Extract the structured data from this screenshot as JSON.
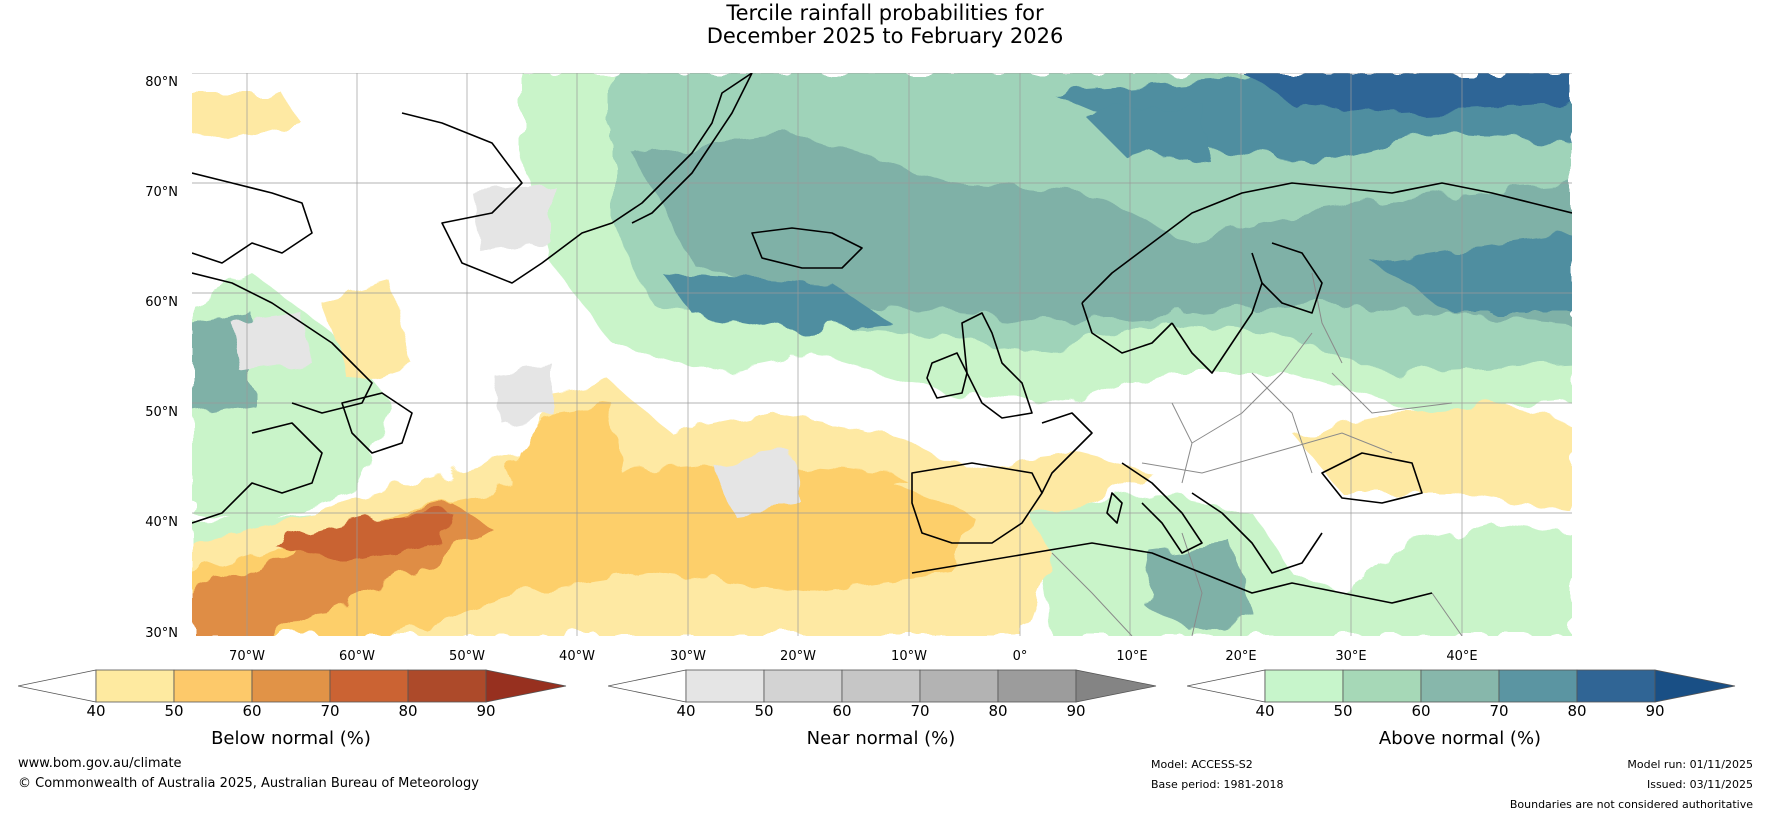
{
  "title": {
    "line1": "Tercile rainfall probabilities for",
    "line2": "December 2025 to February 2026"
  },
  "map": {
    "latitude_labels": [
      "80°N",
      "70°N",
      "60°N",
      "50°N",
      "40°N",
      "30°N"
    ],
    "longitude_labels": [
      "70°W",
      "60°W",
      "50°W",
      "40°W",
      "30°W",
      "20°W",
      "10°W",
      "0°",
      "10°E",
      "20°E",
      "30°E",
      "40°E"
    ],
    "colors": {
      "below_light": "#fee9a3",
      "below_mid": "#fdcf6b",
      "below_orange": "#df8d45",
      "below_dark": "#c96432",
      "near_light": "#e5e5e5",
      "near_mid": "#cfcfcf",
      "above_light": "#c9f4c9",
      "above_mid": "#9fd3b9",
      "above_teal": "#7fb1a7",
      "above_dark": "#4f8ea0",
      "above_navy": "#2d6596",
      "coastline": "#000000",
      "borders": "#8a8a8a",
      "gridlines": "#9a9a9a"
    }
  },
  "colorbars": [
    {
      "name": "below-normal",
      "label": "Below normal (%)",
      "ticks": [
        "40",
        "50",
        "60",
        "70",
        "80",
        "90"
      ],
      "colors": [
        "#ffffff",
        "#feeaa0",
        "#fdc96a",
        "#e19347",
        "#cb6333",
        "#ad4a2a",
        "#97301f"
      ]
    },
    {
      "name": "near-normal",
      "label": "Near normal (%)",
      "ticks": [
        "40",
        "50",
        "60",
        "70",
        "80",
        "90"
      ],
      "colors": [
        "#ffffff",
        "#e5e5e5",
        "#d3d3d3",
        "#c6c6c6",
        "#b3b3b3",
        "#9c9c9c",
        "#848484"
      ]
    },
    {
      "name": "above-normal",
      "label": "Above normal (%)",
      "ticks": [
        "40",
        "50",
        "60",
        "70",
        "80",
        "90"
      ],
      "colors": [
        "#ffffff",
        "#c7f5cb",
        "#a6d8b7",
        "#87b7ab",
        "#5b95a2",
        "#306595",
        "#194f85"
      ]
    }
  ],
  "footer": {
    "website": "www.bom.gov.au/climate",
    "copyright": "© Commonwealth of Australia 2025, Australian Bureau of Meteorology",
    "model": "Model: ACCESS-S2",
    "base_period": "Base period: 1981-2018",
    "model_run": "Model run: 01/11/2025",
    "issued": "Issued: 03/11/2025",
    "disclaimer": "Boundaries are not considered authoritative"
  }
}
